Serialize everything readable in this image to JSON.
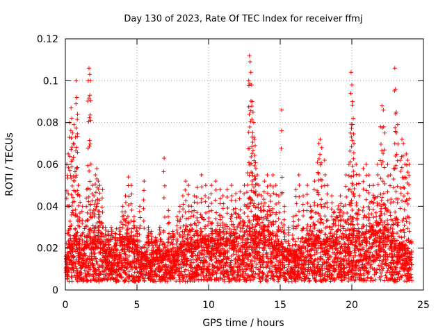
{
  "chart_data": {
    "type": "scatter",
    "title": "Day 130 of 2023, Rate Of TEC Index for receiver ffmj",
    "xlabel": "GPS time / hours",
    "ylabel": "ROTI / TECUs",
    "xlim": [
      0,
      25
    ],
    "ylim": [
      0,
      0.12
    ],
    "xticks": [
      0,
      5,
      10,
      15,
      20,
      25
    ],
    "xtick_labels": [
      "0",
      "5",
      "10",
      "15",
      "20",
      "25"
    ],
    "yticks": [
      0,
      0.02,
      0.04,
      0.06,
      0.08,
      0.1,
      0.12
    ],
    "ytick_labels": [
      "0",
      "0.02",
      "0.04",
      "0.06",
      "0.08",
      "0.1",
      "0.12"
    ],
    "grid": true,
    "legend": "none",
    "marker": "plus",
    "color": "#ff0000",
    "series": [
      {
        "name": "",
        "baseline_points": [
          [
            0.0,
            0.012
          ],
          [
            0.2,
            0.018
          ],
          [
            0.4,
            0.015
          ],
          [
            0.6,
            0.02
          ],
          [
            0.8,
            0.017
          ],
          [
            1.0,
            0.014
          ],
          [
            1.2,
            0.016
          ],
          [
            1.4,
            0.019
          ],
          [
            1.6,
            0.022
          ],
          [
            1.8,
            0.018
          ],
          [
            2.0,
            0.02
          ],
          [
            2.2,
            0.024
          ],
          [
            2.4,
            0.021
          ],
          [
            2.6,
            0.016
          ],
          [
            2.8,
            0.014
          ],
          [
            3.0,
            0.013
          ],
          [
            3.2,
            0.015
          ],
          [
            3.4,
            0.016
          ],
          [
            3.6,
            0.014
          ],
          [
            3.8,
            0.018
          ],
          [
            4.0,
            0.02
          ],
          [
            4.2,
            0.022
          ],
          [
            4.4,
            0.019
          ],
          [
            4.6,
            0.018
          ],
          [
            4.8,
            0.016
          ],
          [
            5.0,
            0.013
          ],
          [
            5.2,
            0.012
          ],
          [
            5.4,
            0.013
          ],
          [
            5.6,
            0.014
          ],
          [
            5.8,
            0.013
          ],
          [
            6.0,
            0.012
          ],
          [
            6.2,
            0.013
          ],
          [
            6.4,
            0.014
          ],
          [
            6.6,
            0.013
          ],
          [
            6.8,
            0.012
          ],
          [
            7.0,
            0.013
          ],
          [
            7.2,
            0.014
          ],
          [
            7.4,
            0.014
          ],
          [
            7.6,
            0.013
          ],
          [
            7.8,
            0.015
          ],
          [
            8.0,
            0.016
          ],
          [
            8.2,
            0.017
          ],
          [
            8.4,
            0.018
          ],
          [
            8.6,
            0.017
          ],
          [
            8.8,
            0.016
          ],
          [
            9.0,
            0.017
          ],
          [
            9.2,
            0.018
          ],
          [
            9.4,
            0.02
          ],
          [
            9.6,
            0.019
          ],
          [
            9.8,
            0.018
          ],
          [
            10.0,
            0.017
          ],
          [
            10.2,
            0.018
          ],
          [
            10.4,
            0.019
          ],
          [
            10.6,
            0.02
          ],
          [
            10.8,
            0.019
          ],
          [
            11.0,
            0.018
          ],
          [
            11.2,
            0.019
          ],
          [
            11.4,
            0.02
          ],
          [
            11.6,
            0.021
          ],
          [
            11.8,
            0.02
          ],
          [
            12.0,
            0.019
          ],
          [
            12.2,
            0.02
          ],
          [
            12.4,
            0.021
          ],
          [
            12.6,
            0.022
          ],
          [
            12.8,
            0.024
          ],
          [
            13.0,
            0.023
          ],
          [
            13.2,
            0.022
          ],
          [
            13.4,
            0.021
          ],
          [
            13.6,
            0.022
          ],
          [
            13.8,
            0.023
          ],
          [
            14.0,
            0.022
          ],
          [
            14.2,
            0.021
          ],
          [
            14.4,
            0.02
          ],
          [
            14.6,
            0.019
          ],
          [
            14.8,
            0.018
          ],
          [
            15.0,
            0.016
          ],
          [
            15.2,
            0.015
          ],
          [
            15.4,
            0.014
          ],
          [
            15.6,
            0.013
          ],
          [
            15.8,
            0.013
          ],
          [
            16.0,
            0.013
          ],
          [
            16.2,
            0.014
          ],
          [
            16.4,
            0.015
          ],
          [
            16.6,
            0.016
          ],
          [
            16.8,
            0.018
          ],
          [
            17.0,
            0.02
          ],
          [
            17.2,
            0.021
          ],
          [
            17.4,
            0.02
          ],
          [
            17.6,
            0.019
          ],
          [
            17.8,
            0.018
          ],
          [
            18.0,
            0.017
          ],
          [
            18.2,
            0.018
          ],
          [
            18.4,
            0.019
          ],
          [
            18.6,
            0.02
          ],
          [
            18.8,
            0.021
          ],
          [
            19.0,
            0.022
          ],
          [
            19.2,
            0.02
          ],
          [
            19.4,
            0.019
          ],
          [
            19.6,
            0.02
          ],
          [
            19.8,
            0.022
          ],
          [
            20.0,
            0.024
          ],
          [
            20.2,
            0.022
          ],
          [
            20.4,
            0.021
          ],
          [
            20.6,
            0.02
          ],
          [
            20.8,
            0.021
          ],
          [
            21.0,
            0.022
          ],
          [
            21.2,
            0.024
          ],
          [
            21.4,
            0.025
          ],
          [
            21.6,
            0.026
          ],
          [
            21.8,
            0.025
          ],
          [
            22.0,
            0.024
          ],
          [
            22.2,
            0.023
          ],
          [
            22.4,
            0.022
          ],
          [
            22.6,
            0.02
          ],
          [
            22.8,
            0.019
          ],
          [
            23.0,
            0.018
          ],
          [
            23.2,
            0.017
          ],
          [
            23.4,
            0.016
          ],
          [
            23.6,
            0.015
          ],
          [
            23.8,
            0.014
          ],
          [
            24.0,
            0.013
          ]
        ],
        "peak_points": [
          [
            0.1,
            0.06
          ],
          [
            0.2,
            0.065
          ],
          [
            0.3,
            0.08
          ],
          [
            0.4,
            0.087
          ],
          [
            0.45,
            0.082
          ],
          [
            0.5,
            0.075
          ],
          [
            0.55,
            0.07
          ],
          [
            0.6,
            0.079
          ],
          [
            0.7,
            0.073
          ],
          [
            0.75,
            0.1
          ],
          [
            0.8,
            0.092
          ],
          [
            0.85,
            0.084
          ],
          [
            0.9,
            0.05
          ],
          [
            1.0,
            0.045
          ],
          [
            1.2,
            0.04
          ],
          [
            1.5,
            0.048
          ],
          [
            1.6,
            0.1
          ],
          [
            1.65,
            0.106
          ],
          [
            1.7,
            0.103
          ],
          [
            1.75,
            0.1
          ],
          [
            1.9,
            0.05
          ],
          [
            2.0,
            0.045
          ],
          [
            2.1,
            0.055
          ],
          [
            2.2,
            0.058
          ],
          [
            2.3,
            0.052
          ],
          [
            2.4,
            0.05
          ],
          [
            2.6,
            0.048
          ],
          [
            2.8,
            0.03
          ],
          [
            3.0,
            0.028
          ],
          [
            3.2,
            0.03
          ],
          [
            3.5,
            0.025
          ],
          [
            3.8,
            0.03
          ],
          [
            4.0,
            0.04
          ],
          [
            4.2,
            0.045
          ],
          [
            4.4,
            0.054
          ],
          [
            4.6,
            0.05
          ],
          [
            4.8,
            0.035
          ],
          [
            5.0,
            0.03
          ],
          [
            5.2,
            0.04
          ],
          [
            5.5,
            0.052
          ],
          [
            5.8,
            0.03
          ],
          [
            6.0,
            0.028
          ],
          [
            6.3,
            0.025
          ],
          [
            6.6,
            0.03
          ],
          [
            6.9,
            0.063
          ],
          [
            7.2,
            0.038
          ],
          [
            7.5,
            0.028
          ],
          [
            7.8,
            0.035
          ],
          [
            8.0,
            0.04
          ],
          [
            8.2,
            0.045
          ],
          [
            8.4,
            0.052
          ],
          [
            8.6,
            0.05
          ],
          [
            8.8,
            0.04
          ],
          [
            9.0,
            0.045
          ],
          [
            9.2,
            0.049
          ],
          [
            9.5,
            0.055
          ],
          [
            9.8,
            0.05
          ],
          [
            10.0,
            0.044
          ],
          [
            10.2,
            0.05
          ],
          [
            10.5,
            0.052
          ],
          [
            10.8,
            0.048
          ],
          [
            11.0,
            0.045
          ],
          [
            11.3,
            0.048
          ],
          [
            11.6,
            0.05
          ],
          [
            11.9,
            0.046
          ],
          [
            12.2,
            0.047
          ],
          [
            12.5,
            0.05
          ],
          [
            12.7,
            0.056
          ],
          [
            12.8,
            0.1
          ],
          [
            12.85,
            0.112
          ],
          [
            12.9,
            0.109
          ],
          [
            12.95,
            0.104
          ],
          [
            13.0,
            0.098
          ],
          [
            13.05,
            0.09
          ],
          [
            13.1,
            0.085
          ],
          [
            13.15,
            0.08
          ],
          [
            13.2,
            0.072
          ],
          [
            13.25,
            0.069
          ],
          [
            13.3,
            0.058
          ],
          [
            13.4,
            0.055
          ],
          [
            13.5,
            0.05
          ],
          [
            13.7,
            0.045
          ],
          [
            13.9,
            0.052
          ],
          [
            14.1,
            0.055
          ],
          [
            14.3,
            0.05
          ],
          [
            14.5,
            0.055
          ],
          [
            14.7,
            0.05
          ],
          [
            14.9,
            0.045
          ],
          [
            15.1,
            0.086
          ],
          [
            15.3,
            0.04
          ],
          [
            15.6,
            0.03
          ],
          [
            15.9,
            0.035
          ],
          [
            16.1,
            0.048
          ],
          [
            16.3,
            0.055
          ],
          [
            16.6,
            0.045
          ],
          [
            16.9,
            0.05
          ],
          [
            17.1,
            0.04
          ],
          [
            17.4,
            0.052
          ],
          [
            17.6,
            0.061
          ],
          [
            17.7,
            0.07
          ],
          [
            17.8,
            0.072
          ],
          [
            17.9,
            0.068
          ],
          [
            18.1,
            0.062
          ],
          [
            18.3,
            0.05
          ],
          [
            18.6,
            0.045
          ],
          [
            18.9,
            0.035
          ],
          [
            19.2,
            0.045
          ],
          [
            19.4,
            0.04
          ],
          [
            19.6,
            0.055
          ],
          [
            19.8,
            0.06
          ],
          [
            19.9,
            0.075
          ],
          [
            19.95,
            0.104
          ],
          [
            20.0,
            0.098
          ],
          [
            20.05,
            0.09
          ],
          [
            20.1,
            0.082
          ],
          [
            20.15,
            0.07
          ],
          [
            20.3,
            0.06
          ],
          [
            20.5,
            0.055
          ],
          [
            20.8,
            0.058
          ],
          [
            21.0,
            0.06
          ],
          [
            21.2,
            0.055
          ],
          [
            21.5,
            0.05
          ],
          [
            21.8,
            0.06
          ],
          [
            22.0,
            0.078
          ],
          [
            22.1,
            0.088
          ],
          [
            22.2,
            0.086
          ],
          [
            22.3,
            0.075
          ],
          [
            22.5,
            0.06
          ],
          [
            22.7,
            0.055
          ],
          [
            22.9,
            0.058
          ],
          [
            23.0,
            0.106
          ],
          [
            23.05,
            0.096
          ],
          [
            23.1,
            0.085
          ],
          [
            23.2,
            0.079
          ],
          [
            23.4,
            0.062
          ],
          [
            23.5,
            0.072
          ],
          [
            23.6,
            0.07
          ],
          [
            23.7,
            0.06
          ],
          [
            23.8,
            0.065
          ],
          [
            23.9,
            0.062
          ],
          [
            24.0,
            0.06
          ]
        ]
      }
    ]
  }
}
